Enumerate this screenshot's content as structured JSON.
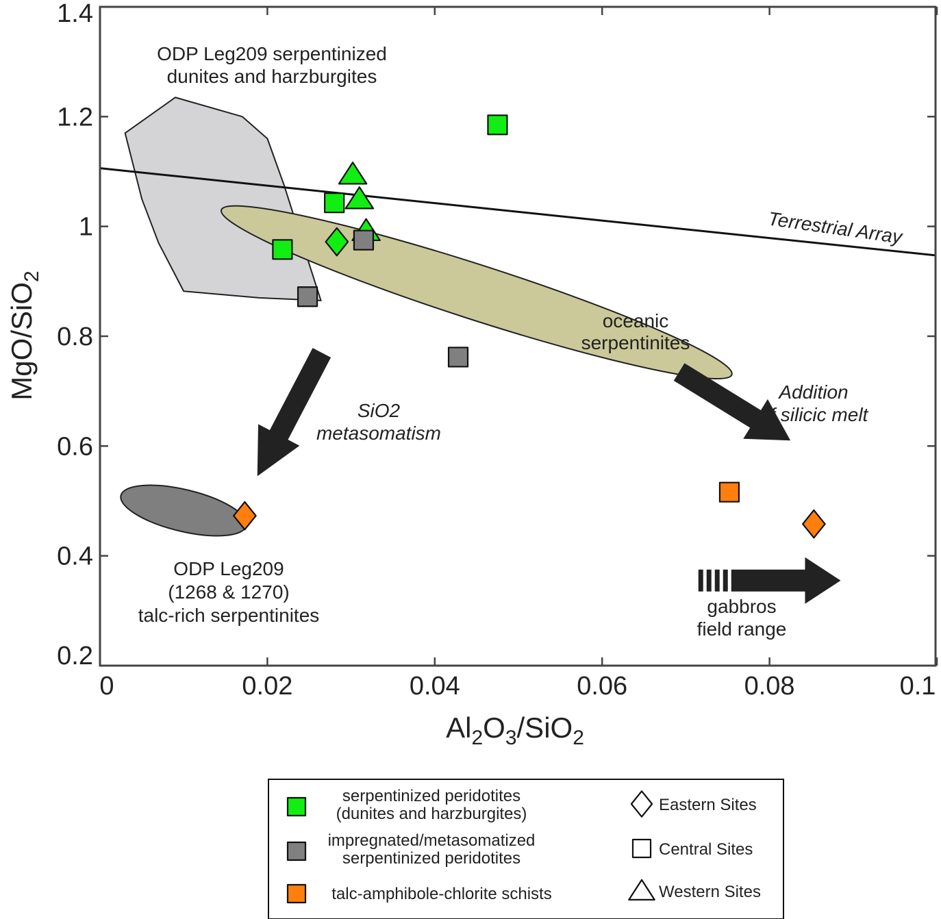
{
  "chart_data": {
    "type": "scatter",
    "xlim": [
      0,
      0.1
    ],
    "ylim": [
      0.2,
      1.4
    ],
    "x_ticks": [
      "0",
      "0.02",
      "0.04",
      "0.06",
      "0.08",
      "0.1"
    ],
    "y_ticks": [
      "0.2",
      "0.4",
      "0.6",
      "0.8",
      "1",
      "1.2",
      "1.4"
    ],
    "xlabel_parts": [
      "Al",
      "2",
      "O",
      "3",
      "/SiO",
      "2"
    ],
    "ylabel_parts": [
      "MgO/SiO",
      "2"
    ],
    "terrestrial_array": {
      "label": "Terrestrial Array",
      "points": [
        [
          0,
          1.106
        ],
        [
          0.1,
          0.947
        ]
      ]
    },
    "fields": [
      {
        "name": "leg209_dunites",
        "label_lines": [
          "ODP Leg209 serpentinized",
          "dunites and harzburgites"
        ],
        "color": "#d4d4d6",
        "polygon": [
          [
            0.009,
            1.235
          ],
          [
            0.017,
            1.2
          ],
          [
            0.02,
            1.16
          ],
          [
            0.022,
            1.075
          ],
          [
            0.0245,
            0.955
          ],
          [
            0.0264,
            0.865
          ],
          [
            0.019,
            0.87
          ],
          [
            0.01,
            0.882
          ],
          [
            0.007,
            0.97
          ],
          [
            0.005,
            1.05
          ],
          [
            0.003,
            1.17
          ]
        ]
      },
      {
        "name": "oceanic_serpentinites",
        "label_lines": [
          "oceanic",
          "serpentinites"
        ],
        "color": "#cbc89a",
        "ellipse": {
          "from": [
            0.0145,
            1.03
          ],
          "to": [
            0.0755,
            0.73
          ],
          "semi_minor_y": 0.05
        }
      },
      {
        "name": "leg209_talc_rich",
        "label_lines": [
          "ODP Leg209",
          "(1268 & 1270)",
          "talc-rich serpentinites"
        ],
        "color": "#7f7f7f",
        "ellipse": {
          "from": [
            0.0025,
            0.51
          ],
          "to": [
            0.0175,
            0.455
          ],
          "semi_minor_y": 0.038
        }
      }
    ],
    "arrows": [
      {
        "name": "sio2_metasomatism",
        "label_lines": [
          "SiO2",
          "metasomatism"
        ],
        "from": [
          0.0265,
          0.77
        ],
        "to": [
          0.0188,
          0.545
        ]
      },
      {
        "name": "silicic_melt",
        "label_lines": [
          "Addition",
          "of silicic melt"
        ],
        "from": [
          0.0692,
          0.735
        ],
        "to": [
          0.0825,
          0.61
        ]
      },
      {
        "name": "gabbros",
        "label_lines": [
          "gabbros",
          "field range"
        ],
        "from": [
          0.0715,
          0.355
        ],
        "to": [
          0.0885,
          0.355
        ]
      }
    ],
    "series": [
      {
        "name": "serpentinized peridotites (dunites and harzburgites)",
        "color": "#11ee11",
        "points": [
          {
            "x": 0.0218,
            "y": 0.958,
            "site": "central"
          },
          {
            "x": 0.028,
            "y": 1.043,
            "site": "central"
          },
          {
            "x": 0.0475,
            "y": 1.185,
            "site": "central"
          },
          {
            "x": 0.0283,
            "y": 0.972,
            "site": "eastern"
          },
          {
            "x": 0.0302,
            "y": 1.095,
            "site": "western"
          },
          {
            "x": 0.031,
            "y": 1.05,
            "site": "western"
          },
          {
            "x": 0.0318,
            "y": 0.992,
            "site": "western"
          }
        ]
      },
      {
        "name": "impregnated/metasomatized serpentinized peridotites",
        "color": "#808080",
        "points": [
          {
            "x": 0.0248,
            "y": 0.872,
            "site": "central"
          },
          {
            "x": 0.0315,
            "y": 0.975,
            "site": "central"
          },
          {
            "x": 0.0428,
            "y": 0.762,
            "site": "central"
          }
        ]
      },
      {
        "name": "talc-amphibole-chlorite schists",
        "color": "#ff7f0e",
        "points": [
          {
            "x": 0.0173,
            "y": 0.473,
            "site": "eastern"
          },
          {
            "x": 0.0752,
            "y": 0.516,
            "site": "central"
          },
          {
            "x": 0.0853,
            "y": 0.458,
            "site": "eastern"
          }
        ]
      }
    ],
    "legend": {
      "location": "bottom-center",
      "groups": [
        {
          "lines": [
            "serpentinized peridotites",
            "(dunites and harzburgites)"
          ],
          "color": "#11ee11"
        },
        {
          "lines": [
            "impregnated/metasomatized",
            "serpentinized peridotites"
          ],
          "color": "#808080"
        },
        {
          "lines": [
            "talc-amphibole-chlorite schists"
          ],
          "color": "#ff7f0e"
        }
      ],
      "sites": [
        {
          "label": "Eastern Sites",
          "shape": "diamond"
        },
        {
          "label": "Central Sites",
          "shape": "square"
        },
        {
          "label": "Western Sites",
          "shape": "triangle"
        }
      ]
    }
  }
}
